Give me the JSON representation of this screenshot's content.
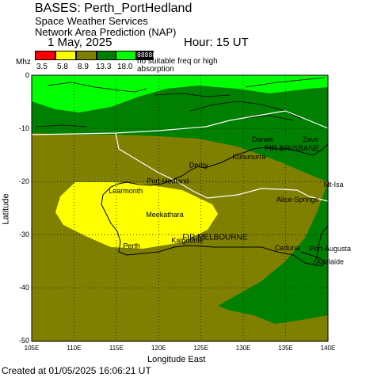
{
  "header": {
    "title": "BASES: Perth_PortHedland",
    "subtitle1": "Space Weather Services",
    "subtitle2": "Network Area Prediction (NAP)",
    "date": "1 May, 2025",
    "hour": "Hour: 15 UT"
  },
  "legend": {
    "unit": "Mhz",
    "colors": [
      "#ff0000",
      "#ffff00",
      "#808000",
      "#008000",
      "#00ff00",
      "#000000"
    ],
    "values": [
      "3.5",
      "5.8",
      "8.9",
      "13.3",
      "18.0"
    ],
    "last_box_label": "88888",
    "note": "no suitable freq or high absorption"
  },
  "axes": {
    "xlabel": "Longitude East",
    "ylabel": "Latitude",
    "xticks": [
      "105E",
      "110E",
      "115E",
      "120E",
      "125E",
      "130E",
      "135E",
      "140E"
    ],
    "yticks": [
      "0",
      "-10",
      "-20",
      "-30",
      "-40",
      "-50"
    ],
    "xlim": [
      105,
      140
    ],
    "ylim": [
      -50,
      0
    ]
  },
  "places": [
    {
      "name": "Darwin",
      "lon": 131.0,
      "lat": -12.5
    },
    {
      "name": "Zave",
      "lon": 137.0,
      "lat": -12.5
    },
    {
      "name": "FIR BRISBANE",
      "lon": 132.5,
      "lat": -14.2
    },
    {
      "name": "Kununurra",
      "lon": 128.7,
      "lat": -15.8
    },
    {
      "name": "Derby",
      "lon": 123.6,
      "lat": -17.3
    },
    {
      "name": "Mt-Isa",
      "lon": 139.5,
      "lat": -21.0
    },
    {
      "name": "Port-Hedland",
      "lon": 118.6,
      "lat": -20.3
    },
    {
      "name": "Learmonth",
      "lon": 114.1,
      "lat": -22.2
    },
    {
      "name": "Alice-Springs",
      "lon": 133.9,
      "lat": -23.8
    },
    {
      "name": "Meekathara",
      "lon": 118.5,
      "lat": -26.6
    },
    {
      "name": "FIR MELBOURNE",
      "lon": 122.8,
      "lat": -30.9
    },
    {
      "name": "Kalgoorlie",
      "lon": 121.5,
      "lat": -31.5
    },
    {
      "name": "Perth",
      "lon": 115.8,
      "lat": -32.5
    },
    {
      "name": "Ceduna",
      "lon": 133.7,
      "lat": -32.9
    },
    {
      "name": "Port-Augusta",
      "lon": 137.8,
      "lat": -33.0
    },
    {
      "name": "Adelaide",
      "lon": 138.6,
      "lat": -35.5
    }
  ],
  "footer": {
    "created": "Created at 01/05/2025 16:06:21 UT"
  }
}
